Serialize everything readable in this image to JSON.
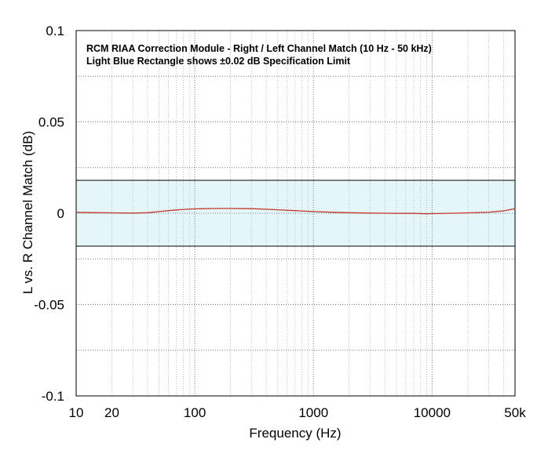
{
  "chart_data": {
    "type": "line",
    "title": "RCM RIAA Correction Module - Right / Left Channel Match (10 Hz - 50 kHz)",
    "subtitle": "Light Blue Rectangle shows ±0.02 dB Specification Limit",
    "xlabel": "Frequency (Hz)",
    "ylabel": "L vs. R Channel Match (dB)",
    "xscale": "log",
    "xlim": [
      10,
      50000
    ],
    "ylim": [
      -0.1,
      0.1
    ],
    "grid": true,
    "x_tick_values": [
      10,
      20,
      100,
      1000,
      10000,
      50000
    ],
    "x_tick_labels": [
      "10",
      "20",
      "100",
      "1000",
      "10000",
      "50k"
    ],
    "y_tick_values": [
      0.1,
      0.05,
      0,
      -0.05,
      -0.1
    ],
    "y_tick_labels": [
      "0.1",
      "0.05",
      "0",
      "-0.05",
      "-0.1"
    ],
    "spec_band": {
      "lower": -0.018,
      "upper": 0.018,
      "color": "#e4f6f7"
    },
    "series": [
      {
        "color": "#c0392b",
        "x": [
          10,
          15,
          20,
          30,
          40,
          50,
          60,
          70,
          80,
          100,
          150,
          200,
          300,
          400,
          500,
          700,
          1000,
          1500,
          2000,
          3000,
          4000,
          5000,
          7000,
          8000,
          9000,
          10000,
          15000,
          20000,
          30000,
          40000,
          50000
        ],
        "y": [
          0.0005,
          0.0003,
          0.0002,
          0.0001,
          0.0003,
          0.0009,
          0.0014,
          0.0018,
          0.0021,
          0.0024,
          0.0026,
          0.0026,
          0.0025,
          0.0022,
          0.0019,
          0.0014,
          0.0009,
          0.0005,
          0.0003,
          0.0001,
          0.0,
          -0.0001,
          -0.0001,
          -0.0002,
          -0.0003,
          -0.0002,
          0.0,
          0.0002,
          0.0006,
          0.0013,
          0.0025
        ]
      }
    ]
  }
}
